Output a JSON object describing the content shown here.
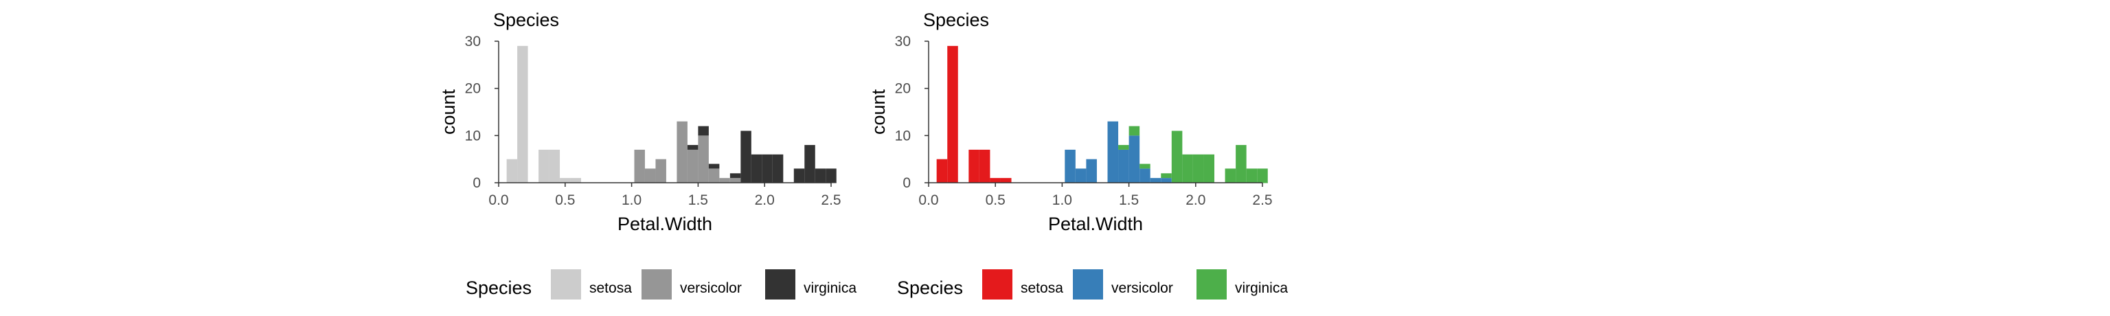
{
  "colors": {
    "grey": {
      "setosa": "#cccccc",
      "versicolor": "#969696",
      "virginica": "#333333"
    },
    "color": {
      "setosa": "#e41a1c",
      "versicolor": "#377eb8",
      "virginica": "#4daf4a"
    },
    "axis": "#333333",
    "tick_text": "#4d4d4d"
  },
  "legend": {
    "title": "Species",
    "entries": [
      "setosa",
      "versicolor",
      "virginica"
    ]
  },
  "chart_data": [
    {
      "type": "bar",
      "stacked": true,
      "title": "Species",
      "xlabel": "Petal.Width",
      "ylabel": "count",
      "xlim": [
        0.0,
        2.5
      ],
      "ylim": [
        0,
        30
      ],
      "x_ticks": [
        "0.0",
        "0.5",
        "1.0",
        "1.5",
        "2.0",
        "2.5"
      ],
      "y_ticks": [
        "0",
        "10",
        "20",
        "30"
      ],
      "grid": false,
      "legend_position": "bottom",
      "palette": "grey",
      "bins": [
        0.1,
        0.18,
        0.26,
        0.34,
        0.42,
        0.5,
        0.58,
        0.66,
        0.74,
        0.82,
        0.9,
        0.98,
        1.06,
        1.14,
        1.22,
        1.3,
        1.38,
        1.46,
        1.54,
        1.62,
        1.7,
        1.78,
        1.86,
        1.94,
        2.02,
        2.1,
        2.18,
        2.26,
        2.34,
        2.42,
        2.5
      ],
      "series": [
        {
          "name": "setosa",
          "values": [
            5,
            29,
            0,
            7,
            7,
            1,
            1,
            0,
            0,
            0,
            0,
            0,
            0,
            0,
            0,
            0,
            0,
            0,
            0,
            0,
            0,
            0,
            0,
            0,
            0,
            0,
            0,
            0,
            0,
            0,
            0
          ]
        },
        {
          "name": "versicolor",
          "values": [
            0,
            0,
            0,
            0,
            0,
            0,
            0,
            0,
            0,
            0,
            0,
            0,
            7,
            3,
            5,
            0,
            13,
            7,
            10,
            3,
            1,
            1,
            0,
            0,
            0,
            0,
            0,
            0,
            0,
            0,
            0
          ]
        },
        {
          "name": "virginica",
          "values": [
            0,
            0,
            0,
            0,
            0,
            0,
            0,
            0,
            0,
            0,
            0,
            0,
            0,
            0,
            0,
            0,
            0,
            1,
            2,
            1,
            0,
            1,
            11,
            6,
            6,
            6,
            0,
            3,
            8,
            3,
            3
          ]
        }
      ]
    },
    {
      "type": "bar",
      "stacked": true,
      "title": "Species",
      "xlabel": "Petal.Width",
      "ylabel": "count",
      "xlim": [
        0.0,
        2.5
      ],
      "ylim": [
        0,
        30
      ],
      "x_ticks": [
        "0.0",
        "0.5",
        "1.0",
        "1.5",
        "2.0",
        "2.5"
      ],
      "y_ticks": [
        "0",
        "10",
        "20",
        "30"
      ],
      "grid": false,
      "legend_position": "bottom",
      "palette": "color",
      "bins": [
        0.1,
        0.18,
        0.26,
        0.34,
        0.42,
        0.5,
        0.58,
        0.66,
        0.74,
        0.82,
        0.9,
        0.98,
        1.06,
        1.14,
        1.22,
        1.3,
        1.38,
        1.46,
        1.54,
        1.62,
        1.7,
        1.78,
        1.86,
        1.94,
        2.02,
        2.1,
        2.18,
        2.26,
        2.34,
        2.42,
        2.5
      ],
      "series": [
        {
          "name": "setosa",
          "values": [
            5,
            29,
            0,
            7,
            7,
            1,
            1,
            0,
            0,
            0,
            0,
            0,
            0,
            0,
            0,
            0,
            0,
            0,
            0,
            0,
            0,
            0,
            0,
            0,
            0,
            0,
            0,
            0,
            0,
            0,
            0
          ]
        },
        {
          "name": "versicolor",
          "values": [
            0,
            0,
            0,
            0,
            0,
            0,
            0,
            0,
            0,
            0,
            0,
            0,
            7,
            3,
            5,
            0,
            13,
            7,
            10,
            3,
            1,
            1,
            0,
            0,
            0,
            0,
            0,
            0,
            0,
            0,
            0
          ]
        },
        {
          "name": "virginica",
          "values": [
            0,
            0,
            0,
            0,
            0,
            0,
            0,
            0,
            0,
            0,
            0,
            0,
            0,
            0,
            0,
            0,
            0,
            1,
            2,
            1,
            0,
            1,
            11,
            6,
            6,
            6,
            0,
            3,
            8,
            3,
            3
          ]
        }
      ]
    }
  ]
}
